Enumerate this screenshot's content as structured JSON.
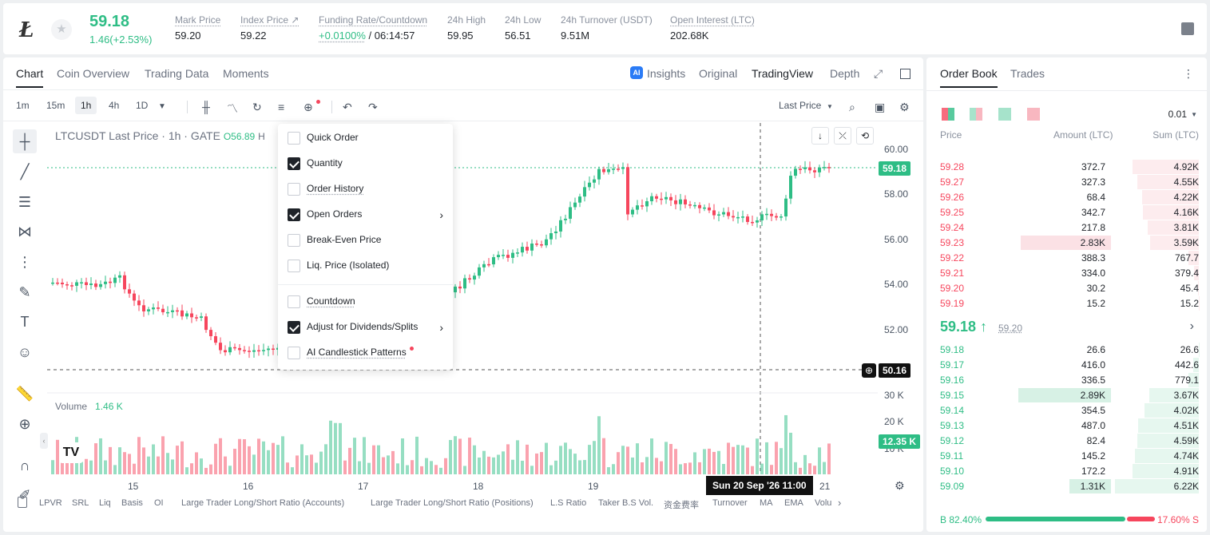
{
  "header": {
    "last_price": "59.18",
    "change": "1.46(+2.53%)",
    "stats": [
      {
        "label": "Mark Price",
        "value": "59.20"
      },
      {
        "label": "Index Price ↗",
        "value": "59.22"
      },
      {
        "label": "Funding Rate/Countdown",
        "value_rate": "+0.0100%",
        "value_cd": "/ 06:14:57"
      },
      {
        "label": "24h High",
        "value": "59.95"
      },
      {
        "label": "24h Low",
        "value": "56.51"
      },
      {
        "label": "24h Turnover (USDT)",
        "value": "9.51M"
      },
      {
        "label": "Open Interest (LTC)",
        "value": "202.68K"
      }
    ]
  },
  "chart_tabs": [
    "Chart",
    "Coin Overview",
    "Trading Data",
    "Moments"
  ],
  "view_tabs": [
    "Insights",
    "Original",
    "TradingView",
    "Depth"
  ],
  "timeframes": [
    "1m",
    "15m",
    "1h",
    "4h",
    "1D"
  ],
  "price_type": "Last Price",
  "legend": {
    "symbol": "LTCUSDT Last Price · 1h · GATE",
    "o": "O56.89",
    "h": "H"
  },
  "yaxis": [
    "60.00",
    "58.00",
    "56.00",
    "54.00",
    "52.00"
  ],
  "volume_axis": [
    "30 K",
    "20 K",
    "10 K"
  ],
  "tags": {
    "last": "59.18",
    "cross": "50.16",
    "volume": "12.35 K"
  },
  "volume_legend": {
    "label": "Volume",
    "value": "1.46 K"
  },
  "xaxis": [
    "15",
    "16",
    "17",
    "18",
    "19",
    "21"
  ],
  "date_tag": "Sun 20 Sep '26   11:00",
  "bottom_indicators": [
    "LPVR",
    "SRL",
    "Liq",
    "Basis",
    "OI",
    "Large Trader Long/Short Ratio (Accounts)",
    "Large Trader Long/Short Ratio (Positions)",
    "L.S Ratio",
    "Taker B.S Vol.",
    "资金费率",
    "Turnover",
    "MA",
    "EMA",
    "Volu"
  ],
  "dropdown": [
    {
      "label": "Quick Order",
      "checked": false
    },
    {
      "label": "Quantity",
      "checked": true
    },
    {
      "label": "Order History",
      "checked": false
    },
    {
      "label": "Open Orders",
      "checked": true
    },
    {
      "label": "Break-Even Price",
      "checked": false
    },
    {
      "label": "Liq. Price (Isolated)",
      "checked": false
    },
    {
      "label": "Countdown",
      "checked": false
    },
    {
      "label": "Adjust for Dividends/Splits",
      "checked": true
    },
    {
      "label": "AI Candlestick Patterns",
      "checked": false
    }
  ],
  "orderbook": {
    "tabs": [
      "Order Book",
      "Trades"
    ],
    "precision": "0.01",
    "headers": [
      "Price",
      "Amount (LTC)",
      "Sum (LTC)"
    ],
    "asks": [
      [
        "59.28",
        "372.7",
        "4.92K"
      ],
      [
        "59.27",
        "327.3",
        "4.55K"
      ],
      [
        "59.26",
        "68.4",
        "4.22K"
      ],
      [
        "59.25",
        "342.7",
        "4.16K"
      ],
      [
        "59.24",
        "217.8",
        "3.81K"
      ],
      [
        "59.23",
        "2.83K",
        "3.59K"
      ],
      [
        "59.22",
        "388.3",
        "767.7"
      ],
      [
        "59.21",
        "334.0",
        "379.4"
      ],
      [
        "59.20",
        "30.2",
        "45.4"
      ],
      [
        "59.19",
        "15.2",
        "15.2"
      ]
    ],
    "mid": {
      "price": "59.18 ↑",
      "mark": "59.20"
    },
    "bids": [
      [
        "59.18",
        "26.6",
        "26.6"
      ],
      [
        "59.17",
        "416.0",
        "442.6"
      ],
      [
        "59.16",
        "336.5",
        "779.1"
      ],
      [
        "59.15",
        "2.89K",
        "3.67K"
      ],
      [
        "59.14",
        "354.5",
        "4.02K"
      ],
      [
        "59.13",
        "487.0",
        "4.51K"
      ],
      [
        "59.12",
        "82.4",
        "4.59K"
      ],
      [
        "59.11",
        "145.2",
        "4.74K"
      ],
      [
        "59.10",
        "172.2",
        "4.91K"
      ],
      [
        "59.09",
        "1.31K",
        "6.22K"
      ]
    ],
    "buy_ratio": "B 82.40%",
    "sell_ratio": "17.60% S"
  },
  "colors": {
    "up": "#2ebd85",
    "down": "#f6465d"
  }
}
